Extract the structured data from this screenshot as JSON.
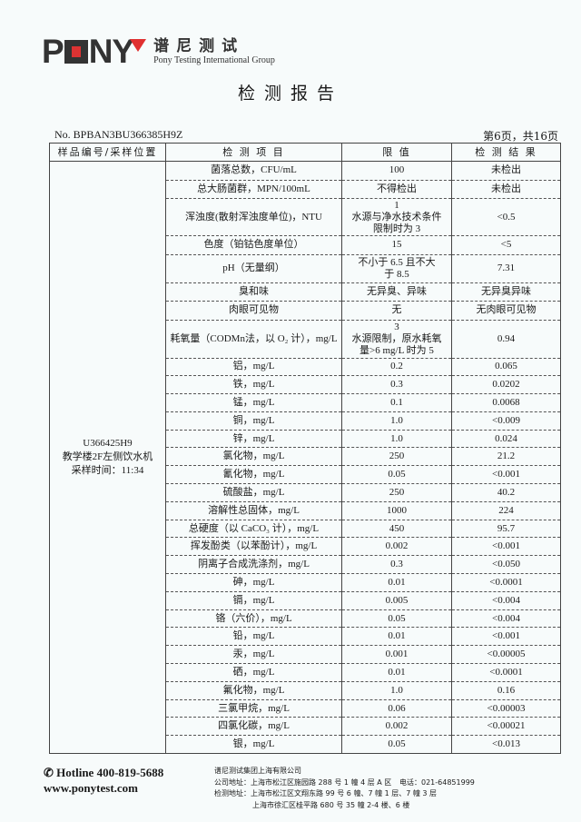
{
  "header": {
    "logo_text": "PONY",
    "brand_cn": "谱尼测试",
    "brand_en": "Pony Testing International Group",
    "title": "检测报告",
    "report_no": "No. BPBAN3BU366385H9Z",
    "page_info": "第6页，共16页"
  },
  "table": {
    "headers": [
      "样品编号/采样位置",
      "检 测 项 目",
      "限 值",
      "检 测 结 果"
    ],
    "sample": "U366425H9\n教学楼2F左侧饮水机\n采样时间：11:34",
    "rows": [
      [
        "菌落总数，CFU/mL",
        "100",
        "未检出"
      ],
      [
        "总大肠菌群，MPN/100mL",
        "不得检出",
        "未检出"
      ],
      [
        "浑浊度(散射浑浊度单位)，NTU",
        "1\n水源与净水技术条件\n限制时为 3",
        "<0.5"
      ],
      [
        "色度（铂钴色度单位）",
        "15",
        "<5"
      ],
      [
        "pH（无量纲）",
        "不小于 6.5 且不大\n于 8.5",
        "7.31"
      ],
      [
        "臭和味",
        "无异臭、异味",
        "无异臭异味"
      ],
      [
        "肉眼可见物",
        "无",
        "无肉眼可见物"
      ],
      [
        "耗氧量（CODMn法，以 O₂ 计），mg/L",
        "3\n水源限制，原水耗氧\n量>6 mg/L 时为 5",
        "0.94"
      ],
      [
        "铝，mg/L",
        "0.2",
        "0.065"
      ],
      [
        "铁，mg/L",
        "0.3",
        "0.0202"
      ],
      [
        "锰，mg/L",
        "0.1",
        "0.0068"
      ],
      [
        "铜，mg/L",
        "1.0",
        "<0.009"
      ],
      [
        "锌，mg/L",
        "1.0",
        "0.024"
      ],
      [
        "氯化物，mg/L",
        "250",
        "21.2"
      ],
      [
        "氰化物，mg/L",
        "0.05",
        "<0.001"
      ],
      [
        "硫酸盐，mg/L",
        "250",
        "40.2"
      ],
      [
        "溶解性总固体，mg/L",
        "1000",
        "224"
      ],
      [
        "总硬度（以 CaCO₃ 计），mg/L",
        "450",
        "95.7"
      ],
      [
        "挥发酚类（以苯酚计），mg/L",
        "0.002",
        "<0.001"
      ],
      [
        "阴离子合成洗涤剂，mg/L",
        "0.3",
        "<0.050"
      ],
      [
        "砷，mg/L",
        "0.01",
        "<0.0001"
      ],
      [
        "镉，mg/L",
        "0.005",
        "<0.004"
      ],
      [
        "铬（六价），mg/L",
        "0.05",
        "<0.004"
      ],
      [
        "铅，mg/L",
        "0.01",
        "<0.001"
      ],
      [
        "汞，mg/L",
        "0.001",
        "<0.00005"
      ],
      [
        "硒，mg/L",
        "0.01",
        "<0.0001"
      ],
      [
        "氟化物，mg/L",
        "1.0",
        "0.16"
      ],
      [
        "三氯甲烷，mg/L",
        "0.06",
        "<0.00003"
      ],
      [
        "四氯化碳，mg/L",
        "0.002",
        "<0.00021"
      ],
      [
        "银，mg/L",
        "0.05",
        "<0.013"
      ]
    ]
  },
  "footer": {
    "hotline": "Hotline 400-819-5688",
    "website": "www.ponytest.com",
    "company": "谱尼测试集团上海有限公司",
    "company_address": "公司地址：上海市松江区施园路 288 号 1 幢 4 层 A 区",
    "phone": "电话：021-64851999",
    "lab_address_1": "检测地址：上海市松江区文翔东路 99 号 6 幢、7 幢 1 层、7 幢 3 层",
    "lab_address_2": "上海市徐汇区桂平路 680 号 35 幢 2-4 楼、6 楼"
  },
  "colors": {
    "logo_red": "#e03030",
    "logo_dark": "#333333"
  }
}
